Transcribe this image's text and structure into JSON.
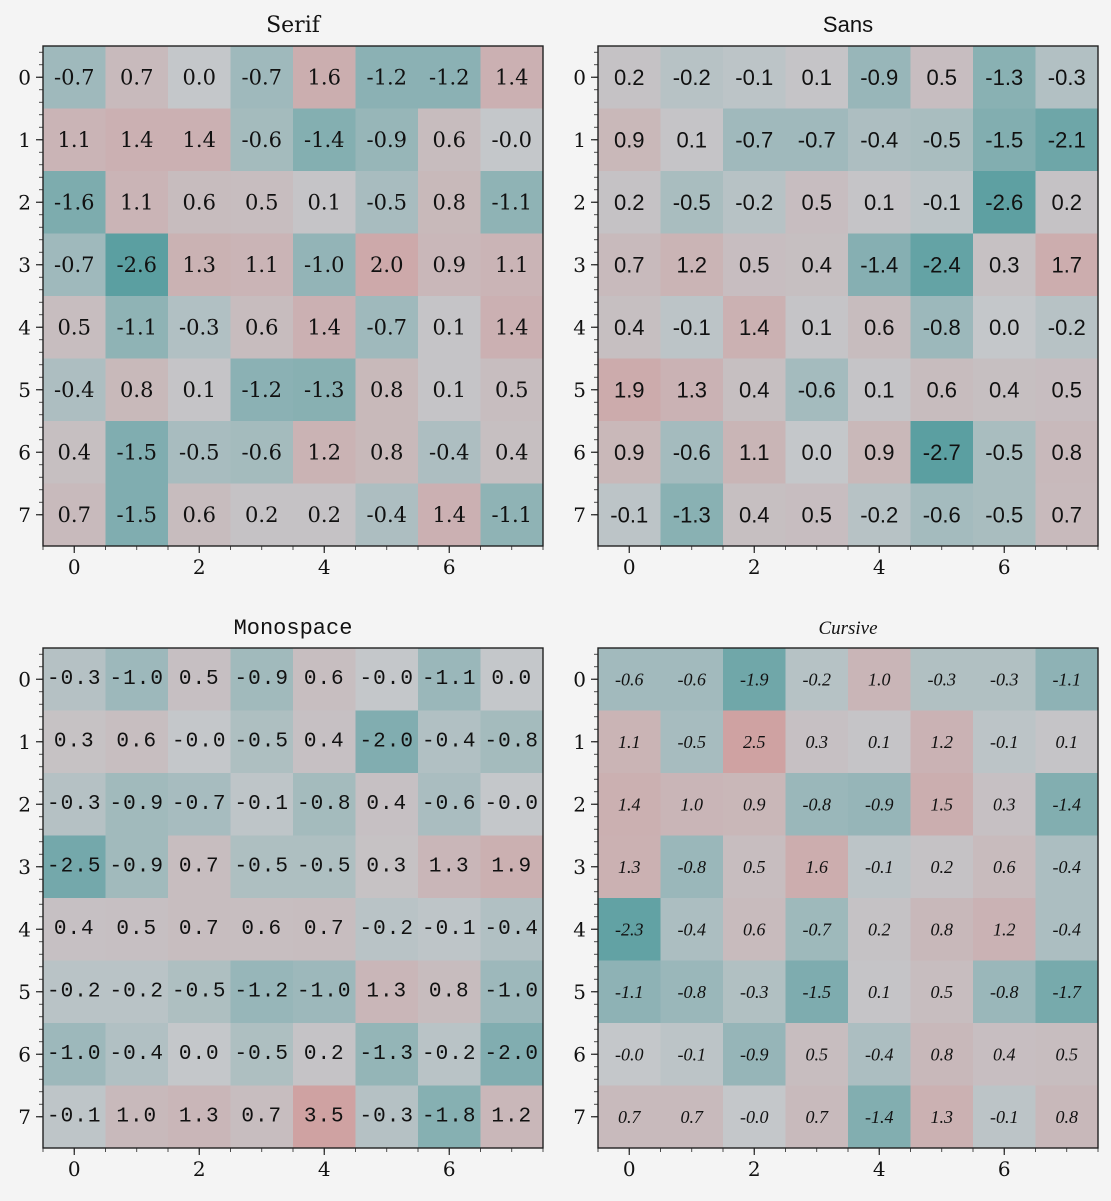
{
  "chart_data": [
    {
      "type": "heatmap",
      "title": "Serif",
      "font_style": "serif",
      "x": [
        0,
        1,
        2,
        3,
        4,
        5,
        6,
        7
      ],
      "y": [
        0,
        1,
        2,
        3,
        4,
        5,
        6,
        7
      ],
      "xticklabels": [
        "0",
        "2",
        "4",
        "6"
      ],
      "yticklabels": [
        "0",
        "1",
        "2",
        "3",
        "4",
        "5",
        "6",
        "7"
      ],
      "values": [
        [
          -0.7,
          0.7,
          0.0,
          -0.7,
          1.6,
          -1.2,
          -1.2,
          1.4
        ],
        [
          1.1,
          1.4,
          1.4,
          -0.6,
          -1.4,
          -0.9,
          0.6,
          -0.0
        ],
        [
          -1.6,
          1.1,
          0.6,
          0.5,
          0.1,
          -0.5,
          0.8,
          -1.1
        ],
        [
          -0.7,
          -2.6,
          1.3,
          1.1,
          -1.0,
          2.0,
          0.9,
          1.1
        ],
        [
          0.5,
          -1.1,
          -0.3,
          0.6,
          1.4,
          -0.7,
          0.1,
          1.4
        ],
        [
          -0.4,
          0.8,
          0.1,
          -1.2,
          -1.3,
          0.8,
          0.1,
          0.5
        ],
        [
          0.4,
          -1.5,
          -0.5,
          -0.6,
          1.2,
          0.8,
          -0.4,
          0.4
        ],
        [
          0.7,
          -1.5,
          0.6,
          0.2,
          0.2,
          -0.4,
          1.4,
          -1.1
        ]
      ],
      "labels": [
        [
          "-0.7",
          "0.7",
          "0.0",
          "-0.7",
          "1.6",
          "-1.2",
          "-1.2",
          "1.4"
        ],
        [
          "1.1",
          "1.4",
          "1.4",
          "-0.6",
          "-1.4",
          "-0.9",
          "0.6",
          "-0.0"
        ],
        [
          "-1.6",
          "1.1",
          "0.6",
          "0.5",
          "0.1",
          "-0.5",
          "0.8",
          "-1.1"
        ],
        [
          "-0.7",
          "-2.6",
          "1.3",
          "1.1",
          "-1.0",
          "2.0",
          "0.9",
          "1.1"
        ],
        [
          "0.5",
          "-1.1",
          "-0.3",
          "0.6",
          "1.4",
          "-0.7",
          "0.1",
          "1.4"
        ],
        [
          "-0.4",
          "0.8",
          "0.1",
          "-1.2",
          "-1.3",
          "0.8",
          "0.1",
          "0.5"
        ],
        [
          "0.4",
          "-1.5",
          "-0.5",
          "-0.6",
          "1.2",
          "0.8",
          "-0.4",
          "0.4"
        ],
        [
          "0.7",
          "-1.5",
          "0.6",
          "0.2",
          "0.2",
          "-0.4",
          "1.4",
          "-1.1"
        ]
      ],
      "colormap": {
        "low": "#5b9fa1",
        "mid": "#c4c7ca",
        "high": "#cfa2a2"
      }
    },
    {
      "type": "heatmap",
      "title": "Sans",
      "font_style": "sans",
      "x": [
        0,
        1,
        2,
        3,
        4,
        5,
        6,
        7
      ],
      "y": [
        0,
        1,
        2,
        3,
        4,
        5,
        6,
        7
      ],
      "xticklabels": [
        "0",
        "2",
        "4",
        "6"
      ],
      "yticklabels": [
        "0",
        "1",
        "2",
        "3",
        "4",
        "5",
        "6",
        "7"
      ],
      "values": [
        [
          0.2,
          -0.2,
          -0.1,
          0.1,
          -0.9,
          0.5,
          -1.3,
          -0.3
        ],
        [
          0.9,
          0.1,
          -0.7,
          -0.7,
          -0.4,
          -0.5,
          -1.5,
          -2.1
        ],
        [
          0.2,
          -0.5,
          -0.2,
          0.5,
          0.1,
          -0.1,
          -2.6,
          0.2
        ],
        [
          0.7,
          1.2,
          0.5,
          0.4,
          -1.4,
          -2.4,
          0.3,
          1.7
        ],
        [
          0.4,
          -0.1,
          1.4,
          0.1,
          0.6,
          -0.8,
          0.0,
          -0.2
        ],
        [
          1.9,
          1.3,
          0.4,
          -0.6,
          0.1,
          0.6,
          0.4,
          0.5
        ],
        [
          0.9,
          -0.6,
          1.1,
          0.0,
          0.9,
          -2.7,
          -0.5,
          0.8
        ],
        [
          -0.1,
          -1.3,
          0.4,
          0.5,
          -0.2,
          -0.6,
          -0.5,
          0.7
        ]
      ],
      "labels": [
        [
          "0.2",
          "-0.2",
          "-0.1",
          "0.1",
          "-0.9",
          "0.5",
          "-1.3",
          "-0.3"
        ],
        [
          "0.9",
          "0.1",
          "-0.7",
          "-0.7",
          "-0.4",
          "-0.5",
          "-1.5",
          "-2.1"
        ],
        [
          "0.2",
          "-0.5",
          "-0.2",
          "0.5",
          "0.1",
          "-0.1",
          "-2.6",
          "0.2"
        ],
        [
          "0.7",
          "1.2",
          "0.5",
          "0.4",
          "-1.4",
          "-2.4",
          "0.3",
          "1.7"
        ],
        [
          "0.4",
          "-0.1",
          "1.4",
          "0.1",
          "0.6",
          "-0.8",
          "0.0",
          "-0.2"
        ],
        [
          "1.9",
          "1.3",
          "0.4",
          "-0.6",
          "0.1",
          "0.6",
          "0.4",
          "0.5"
        ],
        [
          "0.9",
          "-0.6",
          "1.1",
          "0.0",
          "0.9",
          "-2.7",
          "-0.5",
          "0.8"
        ],
        [
          "-0.1",
          "-1.3",
          "0.4",
          "0.5",
          "-0.2",
          "-0.6",
          "-0.5",
          "0.7"
        ]
      ],
      "colormap": {
        "low": "#5b9fa1",
        "mid": "#c4c7ca",
        "high": "#cfa2a2"
      }
    },
    {
      "type": "heatmap",
      "title": "Monospace",
      "font_style": "mono",
      "x": [
        0,
        1,
        2,
        3,
        4,
        5,
        6,
        7
      ],
      "y": [
        0,
        1,
        2,
        3,
        4,
        5,
        6,
        7
      ],
      "xticklabels": [
        "0",
        "2",
        "4",
        "6"
      ],
      "yticklabels": [
        "0",
        "1",
        "2",
        "3",
        "4",
        "5",
        "6",
        "7"
      ],
      "values": [
        [
          -0.3,
          -1.0,
          0.5,
          -0.9,
          0.6,
          -0.0,
          -1.1,
          0.0
        ],
        [
          0.3,
          0.6,
          -0.0,
          -0.5,
          0.4,
          -2.0,
          -0.4,
          -0.8
        ],
        [
          -0.3,
          -0.9,
          -0.7,
          -0.1,
          -0.8,
          0.4,
          -0.6,
          -0.0
        ],
        [
          -2.5,
          -0.9,
          0.7,
          -0.5,
          -0.5,
          0.3,
          1.3,
          1.9
        ],
        [
          0.4,
          0.5,
          0.7,
          0.6,
          0.7,
          -0.2,
          -0.1,
          -0.4
        ],
        [
          -0.2,
          -0.2,
          -0.5,
          -1.2,
          -1.0,
          1.3,
          0.8,
          -1.0
        ],
        [
          -1.0,
          -0.4,
          0.0,
          -0.5,
          0.2,
          -1.3,
          -0.2,
          -2.0
        ],
        [
          -0.1,
          1.0,
          1.3,
          0.7,
          3.5,
          -0.3,
          -1.8,
          1.2
        ]
      ],
      "labels": [
        [
          "-0.3",
          "-1.0",
          "0.5",
          "-0.9",
          "0.6",
          "-0.0",
          "-1.1",
          "0.0"
        ],
        [
          "0.3",
          "0.6",
          "-0.0",
          "-0.5",
          "0.4",
          "-2.0",
          "-0.4",
          "-0.8"
        ],
        [
          "-0.3",
          "-0.9",
          "-0.7",
          "-0.1",
          "-0.8",
          "0.4",
          "-0.6",
          "-0.0"
        ],
        [
          "-2.5",
          "-0.9",
          "0.7",
          "-0.5",
          "-0.5",
          "0.3",
          "1.3",
          "1.9"
        ],
        [
          "0.4",
          "0.5",
          "0.7",
          "0.6",
          "0.7",
          "-0.2",
          "-0.1",
          "-0.4"
        ],
        [
          "-0.2",
          "-0.2",
          "-0.5",
          "-1.2",
          "-1.0",
          "1.3",
          "0.8",
          "-1.0"
        ],
        [
          "-1.0",
          "-0.4",
          "0.0",
          "-0.5",
          "0.2",
          "-1.3",
          "-0.2",
          "-2.0"
        ],
        [
          "-0.1",
          "1.0",
          "1.3",
          "0.7",
          "3.5",
          "-0.3",
          "-1.8",
          "1.2"
        ]
      ],
      "colormap": {
        "low": "#5b9fa1",
        "mid": "#c4c7ca",
        "high": "#cfa2a2"
      }
    },
    {
      "type": "heatmap",
      "title": "Cursive",
      "font_style": "cursive",
      "x": [
        0,
        1,
        2,
        3,
        4,
        5,
        6,
        7
      ],
      "y": [
        0,
        1,
        2,
        3,
        4,
        5,
        6,
        7
      ],
      "xticklabels": [
        "0",
        "2",
        "4",
        "6"
      ],
      "yticklabels": [
        "0",
        "1",
        "2",
        "3",
        "4",
        "5",
        "6",
        "7"
      ],
      "values": [
        [
          -0.6,
          -0.6,
          -1.9,
          -0.2,
          1.0,
          -0.3,
          -0.3,
          -1.1
        ],
        [
          1.1,
          -0.5,
          2.5,
          0.3,
          0.1,
          1.2,
          -0.1,
          0.1
        ],
        [
          1.4,
          1.0,
          0.9,
          -0.8,
          -0.9,
          1.5,
          0.3,
          -1.4
        ],
        [
          1.3,
          -0.8,
          0.5,
          1.6,
          -0.1,
          0.2,
          0.6,
          -0.4
        ],
        [
          -2.3,
          -0.4,
          0.6,
          -0.7,
          0.2,
          0.8,
          1.2,
          -0.4
        ],
        [
          -1.1,
          -0.8,
          -0.3,
          -1.5,
          0.1,
          0.5,
          -0.8,
          -1.7
        ],
        [
          -0.0,
          -0.1,
          -0.9,
          0.5,
          -0.4,
          0.8,
          0.4,
          0.5
        ],
        [
          0.7,
          0.7,
          -0.0,
          0.7,
          -1.4,
          1.3,
          -0.1,
          0.8
        ]
      ],
      "labels": [
        [
          "-0.6",
          "-0.6",
          "-1.9",
          "-0.2",
          "1.0",
          "-0.3",
          "-0.3",
          "-1.1"
        ],
        [
          "1.1",
          "-0.5",
          "2.5",
          "0.3",
          "0.1",
          "1.2",
          "-0.1",
          "0.1"
        ],
        [
          "1.4",
          "1.0",
          "0.9",
          "-0.8",
          "-0.9",
          "1.5",
          "0.3",
          "-1.4"
        ],
        [
          "1.3",
          "-0.8",
          "0.5",
          "1.6",
          "-0.1",
          "0.2",
          "0.6",
          "-0.4"
        ],
        [
          "-2.3",
          "-0.4",
          "0.6",
          "-0.7",
          "0.2",
          "0.8",
          "1.2",
          "-0.4"
        ],
        [
          "-1.1",
          "-0.8",
          "-0.3",
          "-1.5",
          "0.1",
          "0.5",
          "-0.8",
          "-1.7"
        ],
        [
          "-0.0",
          "-0.1",
          "-0.9",
          "0.5",
          "-0.4",
          "0.8",
          "0.4",
          "0.5"
        ],
        [
          "0.7",
          "0.7",
          "-0.0",
          "0.7",
          "-1.4",
          "1.3",
          "-0.1",
          "0.8"
        ]
      ],
      "colormap": {
        "low": "#5b9fa1",
        "mid": "#c4c7ca",
        "high": "#cfa2a2"
      }
    }
  ]
}
